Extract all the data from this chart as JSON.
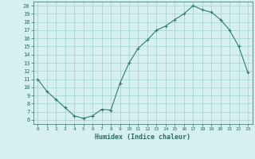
{
  "x": [
    0,
    1,
    2,
    3,
    4,
    5,
    6,
    7,
    8,
    9,
    10,
    11,
    12,
    13,
    14,
    15,
    16,
    17,
    18,
    19,
    20,
    21,
    22,
    23
  ],
  "y": [
    11,
    9.5,
    8.5,
    7.5,
    6.5,
    6.2,
    6.5,
    7.3,
    7.2,
    10.5,
    13.0,
    14.8,
    15.8,
    17.0,
    17.5,
    18.3,
    19.0,
    20.0,
    19.5,
    19.2,
    18.3,
    17.0,
    15.0,
    11.8
  ],
  "line_color": "#2d7d6e",
  "marker": "+",
  "bg_color": "#d6f0ef",
  "grid_color": "#a0cece",
  "xlabel": "Humidex (Indice chaleur)",
  "xlim": [
    -0.5,
    23.5
  ],
  "ylim": [
    5.5,
    20.5
  ],
  "yticks": [
    6,
    7,
    8,
    9,
    10,
    11,
    12,
    13,
    14,
    15,
    16,
    17,
    18,
    19,
    20
  ],
  "xticks": [
    0,
    1,
    2,
    3,
    4,
    5,
    6,
    7,
    8,
    9,
    10,
    11,
    12,
    13,
    14,
    15,
    16,
    17,
    18,
    19,
    20,
    21,
    22,
    23
  ],
  "font_color": "#2d6b5e",
  "axis_color": "#2d6b5e"
}
